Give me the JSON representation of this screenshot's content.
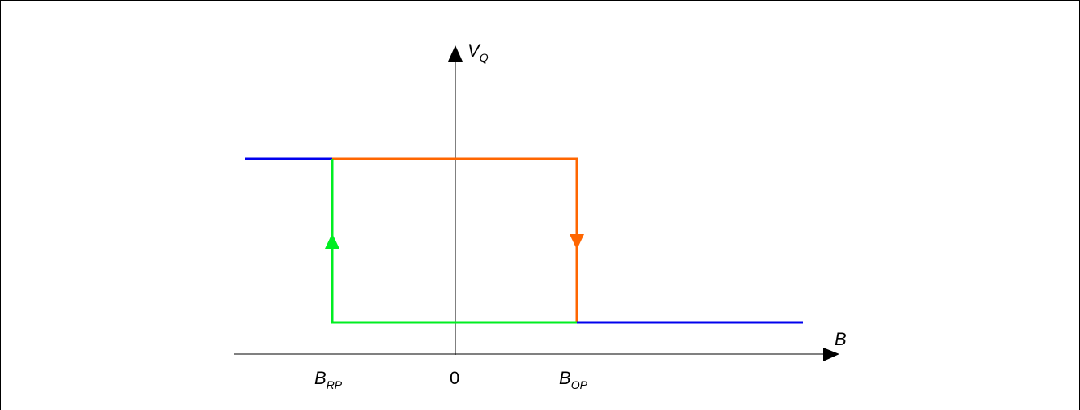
{
  "diagram": {
    "axes": {
      "y_label": "V",
      "y_label_sub": "Q",
      "x_label": "B"
    },
    "ticks": {
      "brp": {
        "main": "B",
        "sub": "RP"
      },
      "zero": "0",
      "bop": {
        "main": "B",
        "sub": "OP"
      }
    },
    "colors": {
      "axis": "#000000",
      "saturated_segments": "#0000ee",
      "operate_path": "#ff6600",
      "release_path": "#00ee22",
      "frame_border": "#000000"
    }
  }
}
